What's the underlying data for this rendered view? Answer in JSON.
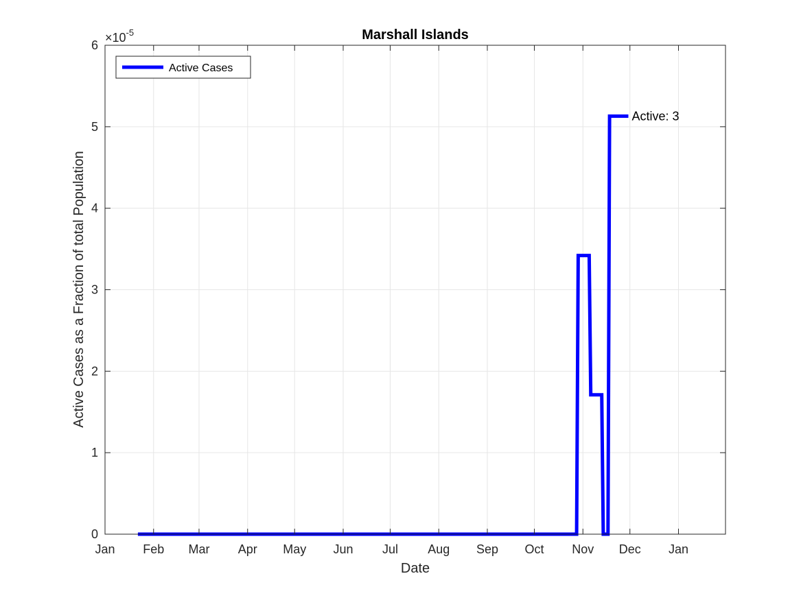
{
  "chart_data": {
    "type": "line",
    "title": "Marshall Islands",
    "xlabel": "Date",
    "ylabel": "Active Cases as a Fraction of total Population",
    "y_exponent_base": "×10",
    "y_exponent_power": "-5",
    "x_range": [
      "2020-01-01",
      "2021-01-31"
    ],
    "ylim": [
      0,
      6
    ],
    "y_ticks": [
      0,
      1,
      2,
      3,
      4,
      5,
      6
    ],
    "x_ticks": [
      {
        "date": "2020-01-01",
        "label": "Jan"
      },
      {
        "date": "2020-02-01",
        "label": "Feb"
      },
      {
        "date": "2020-03-01",
        "label": "Mar"
      },
      {
        "date": "2020-04-01",
        "label": "Apr"
      },
      {
        "date": "2020-05-01",
        "label": "May"
      },
      {
        "date": "2020-06-01",
        "label": "Jun"
      },
      {
        "date": "2020-07-01",
        "label": "Jul"
      },
      {
        "date": "2020-08-01",
        "label": "Aug"
      },
      {
        "date": "2020-09-01",
        "label": "Sep"
      },
      {
        "date": "2020-10-01",
        "label": "Oct"
      },
      {
        "date": "2020-11-01",
        "label": "Nov"
      },
      {
        "date": "2020-12-01",
        "label": "Dec"
      },
      {
        "date": "2021-01-01",
        "label": "Jan"
      }
    ],
    "grid": true,
    "legend_position": "top-left",
    "series": [
      {
        "name": "Active Cases",
        "color": "#0000ff",
        "points": [
          {
            "x": "2020-01-22",
            "y": 0
          },
          {
            "x": "2020-10-28",
            "y": 0
          },
          {
            "x": "2020-10-29",
            "y": 3.42
          },
          {
            "x": "2020-11-05",
            "y": 3.42
          },
          {
            "x": "2020-11-06",
            "y": 1.71
          },
          {
            "x": "2020-11-13",
            "y": 1.71
          },
          {
            "x": "2020-11-14",
            "y": 0
          },
          {
            "x": "2020-11-17",
            "y": 0
          },
          {
            "x": "2020-11-18",
            "y": 5.13
          },
          {
            "x": "2020-11-30",
            "y": 5.13
          }
        ]
      }
    ],
    "annotations": [
      {
        "text": "Active: 3",
        "x": "2020-11-30",
        "y": 5.13
      }
    ]
  }
}
